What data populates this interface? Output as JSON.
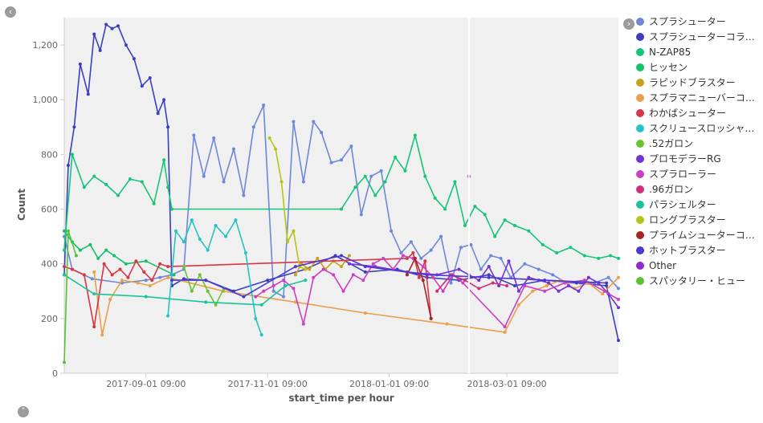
{
  "nav": {
    "collapse_left_icon": "chevron-left-icon",
    "collapse_right_icon": "chevron-right-icon",
    "collapse_up_icon": "chevron-up-icon"
  },
  "colors": {
    "plot_bg": "#f0f0f0",
    "axis": "#cccccc",
    "tick_text": "#666666",
    "marker_line": "#ffffff"
  },
  "chart_data": {
    "type": "line",
    "title": "",
    "xlabel": "start_time per hour",
    "ylabel": "Count",
    "ylim": [
      0,
      1300
    ],
    "yticks": [
      0,
      200,
      400,
      600,
      800,
      1000,
      1200
    ],
    "ytick_labels": [
      "0",
      "200",
      "400",
      "600",
      "800",
      "1,000",
      "1,200"
    ],
    "xlim": [
      "2017-07-22",
      "2018-04-26"
    ],
    "xticks": [
      "2017-09-01",
      "2017-11-01",
      "2018-01-01",
      "2018-03-01"
    ],
    "xtick_labels": [
      "2017-09-01 09:00",
      "2017-11-01 09:00",
      "2018-01-01 09:00",
      "2018-03-01 09:00"
    ],
    "grid": false,
    "legend_position": "right",
    "vertical_marker": "2018-02-10",
    "series": [
      {
        "name": "スプラシューター",
        "color": "#6f87d8",
        "x": [
          "2017-07-22",
          "2017-07-26",
          "2017-08-05",
          "2017-08-20",
          "2017-09-01",
          "2017-09-08",
          "2017-09-14",
          "2017-09-20",
          "2017-09-25",
          "2017-09-30",
          "2017-10-05",
          "2017-10-10",
          "2017-10-15",
          "2017-10-20",
          "2017-10-25",
          "2017-10-30",
          "2017-11-04",
          "2017-11-09",
          "2017-11-14",
          "2017-11-19",
          "2017-11-24",
          "2017-11-28",
          "2017-12-03",
          "2017-12-08",
          "2017-12-13",
          "2017-12-18",
          "2017-12-23",
          "2017-12-28",
          "2018-01-02",
          "2018-01-07",
          "2018-01-12",
          "2018-01-17",
          "2018-01-22",
          "2018-01-27",
          "2018-02-01",
          "2018-02-06",
          "2018-02-11",
          "2018-02-16",
          "2018-02-21",
          "2018-02-26",
          "2018-03-03",
          "2018-03-10",
          "2018-03-17",
          "2018-03-24",
          "2018-03-31",
          "2018-04-07",
          "2018-04-14",
          "2018-04-21",
          "2018-04-26"
        ],
        "values": [
          500,
          380,
          345,
          330,
          340,
          350,
          360,
          380,
          870,
          720,
          860,
          700,
          820,
          650,
          900,
          980,
          300,
          280,
          920,
          700,
          920,
          880,
          770,
          780,
          830,
          580,
          720,
          740,
          520,
          440,
          480,
          420,
          450,
          500,
          330,
          460,
          470,
          380,
          430,
          420,
          350,
          400,
          380,
          360,
          330,
          330,
          330,
          350,
          310
        ]
      },
      {
        "name": "スプラシューターコラ…",
        "color": "#3d3dc2",
        "x": [
          "2017-07-22",
          "2017-07-24",
          "2017-07-27",
          "2017-07-30",
          "2017-08-03",
          "2017-08-06",
          "2017-08-09",
          "2017-08-12",
          "2017-08-15",
          "2017-08-18",
          "2017-08-22",
          "2017-08-26",
          "2017-08-30",
          "2017-09-03",
          "2017-09-07",
          "2017-09-10",
          "2017-09-12",
          "2017-09-14",
          "2017-09-20",
          "2017-10-01",
          "2017-10-15",
          "2017-11-01",
          "2017-11-20",
          "2017-12-05",
          "2017-12-20",
          "2018-01-05",
          "2018-01-20",
          "2018-02-05",
          "2018-02-20",
          "2018-03-05",
          "2018-03-20",
          "2018-04-05",
          "2018-04-20",
          "2018-04-26"
        ],
        "values": [
          360,
          760,
          900,
          1130,
          1020,
          1240,
          1180,
          1275,
          1260,
          1270,
          1200,
          1150,
          1050,
          1080,
          950,
          1000,
          900,
          320,
          345,
          340,
          300,
          340,
          380,
          430,
          370,
          380,
          350,
          340,
          360,
          320,
          340,
          330,
          320,
          120
        ]
      },
      {
        "name": "N-ZAP85",
        "color": "#16c47b",
        "x": [
          "2017-07-22",
          "2017-07-26",
          "2017-08-01",
          "2017-08-06",
          "2017-08-12",
          "2017-08-18",
          "2017-08-24",
          "2017-08-30",
          "2017-09-05",
          "2017-09-10",
          "2017-09-12",
          "2017-09-14",
          "2017-12-08",
          "2017-12-15",
          "2017-12-20",
          "2017-12-25",
          "2017-12-30",
          "2018-01-04",
          "2018-01-09",
          "2018-01-14",
          "2018-01-19",
          "2018-01-24",
          "2018-01-29",
          "2018-02-03",
          "2018-02-08",
          "2018-02-13",
          "2018-02-18",
          "2018-02-23",
          "2018-02-28",
          "2018-03-05",
          "2018-03-12",
          "2018-03-19",
          "2018-03-26",
          "2018-04-02",
          "2018-04-09",
          "2018-04-16",
          "2018-04-22",
          "2018-04-26"
        ],
        "values": [
          450,
          800,
          680,
          720,
          690,
          650,
          710,
          700,
          620,
          780,
          680,
          600,
          600,
          680,
          720,
          650,
          700,
          790,
          740,
          870,
          720,
          640,
          600,
          700,
          540,
          610,
          580,
          500,
          560,
          540,
          520,
          470,
          440,
          460,
          430,
          420,
          430,
          420
        ]
      },
      {
        "name": "ヒッセン",
        "color": "#13c266",
        "x": [
          "2017-07-22",
          "2017-07-26",
          "2017-07-30",
          "2017-08-04",
          "2017-08-08",
          "2017-08-12",
          "2017-08-16",
          "2017-08-22",
          "2017-09-01",
          "2017-09-15"
        ],
        "values": [
          520,
          480,
          450,
          470,
          420,
          450,
          430,
          400,
          410,
          360
        ]
      },
      {
        "name": "ラピッドブラスター",
        "color": "#c9a11c",
        "x": [
          "2017-11-15",
          "2017-11-18",
          "2017-11-22",
          "2017-11-26",
          "2017-11-30",
          "2017-12-04",
          "2017-12-08",
          "2017-12-12"
        ],
        "values": [
          360,
          400,
          380,
          420,
          380,
          410,
          390,
          430
        ]
      },
      {
        "name": "スプラマニューバーコ…",
        "color": "#e8a04c",
        "x": [
          "2017-08-06",
          "2017-08-10",
          "2017-08-14",
          "2017-08-20",
          "2017-08-28",
          "2017-09-03",
          "2017-09-12",
          "2017-10-10",
          "2017-11-15",
          "2017-12-20",
          "2018-01-30",
          "2018-02-28",
          "2018-03-07",
          "2018-03-14",
          "2018-03-21",
          "2018-03-28",
          "2018-04-04",
          "2018-04-11",
          "2018-04-18",
          "2018-04-26"
        ],
        "values": [
          370,
          140,
          270,
          340,
          330,
          320,
          350,
          300,
          260,
          220,
          180,
          150,
          250,
          300,
          320,
          340,
          310,
          330,
          290,
          350
        ]
      },
      {
        "name": "わかばシューター",
        "color": "#d93544",
        "x": [
          "2017-07-22",
          "2017-07-26",
          "2017-08-01",
          "2017-08-06",
          "2017-08-11",
          "2017-08-15",
          "2017-08-19",
          "2017-08-23",
          "2017-08-27",
          "2017-08-31",
          "2017-09-04",
          "2017-09-08",
          "2017-09-12",
          "2018-01-10",
          "2018-01-13",
          "2018-01-16",
          "2018-01-19",
          "2018-01-22"
        ],
        "values": [
          390,
          380,
          360,
          170,
          400,
          360,
          380,
          350,
          410,
          370,
          340,
          400,
          390,
          420,
          440,
          350,
          410,
          200
        ]
      },
      {
        "name": "スクリュースロッシャ…",
        "color": "#25c3c3",
        "x": [
          "2017-09-12",
          "2017-09-16",
          "2017-09-20",
          "2017-09-24",
          "2017-09-28",
          "2017-10-02",
          "2017-10-06",
          "2017-10-11",
          "2017-10-16",
          "2017-10-21",
          "2017-10-26",
          "2017-10-29"
        ],
        "values": [
          210,
          520,
          480,
          560,
          490,
          450,
          540,
          500,
          560,
          440,
          200,
          140
        ]
      },
      {
        "name": ".52ガロン",
        "color": "#6ac42d",
        "x": [
          "2017-09-20",
          "2017-09-24",
          "2017-09-28",
          "2017-10-02",
          "2017-10-06",
          "2017-10-10"
        ],
        "values": [
          390,
          300,
          360,
          300,
          250,
          310
        ]
      },
      {
        "name": "プロモデラーRG",
        "color": "#7433d6",
        "x": [
          "2017-12-12",
          "2017-12-25",
          "2018-01-10",
          "2018-01-25",
          "2018-02-05",
          "2018-02-10",
          "2018-02-15",
          "2018-02-20",
          "2018-02-25",
          "2018-03-02",
          "2018-03-07",
          "2018-03-12",
          "2018-03-17",
          "2018-03-22",
          "2018-03-27",
          "2018-04-01",
          "2018-04-06",
          "2018-04-11",
          "2018-04-16",
          "2018-04-21",
          "2018-04-26"
        ],
        "values": [
          400,
          390,
          370,
          360,
          380,
          360,
          340,
          390,
          320,
          410,
          300,
          350,
          340,
          330,
          300,
          320,
          300,
          350,
          330,
          290,
          240
        ]
      },
      {
        "name": "スプラローラー",
        "color": "#cc3fc2",
        "x": [
          "2017-10-26",
          "2017-10-30",
          "2017-11-04",
          "2017-11-09",
          "2017-11-14",
          "2017-11-19",
          "2017-11-24",
          "2017-11-29",
          "2017-12-04",
          "2017-12-09",
          "2017-12-14",
          "2017-12-19",
          "2017-12-24",
          "2017-12-29",
          "2018-01-03",
          "2018-01-08",
          "2018-01-13",
          "2018-01-18",
          "2018-01-23",
          "2018-01-28",
          "2018-02-02",
          "2018-02-07",
          "2018-02-28",
          "2018-03-10",
          "2018-03-20",
          "2018-03-30",
          "2018-04-09",
          "2018-04-19",
          "2018-04-26"
        ],
        "values": [
          280,
          300,
          320,
          340,
          310,
          180,
          350,
          380,
          360,
          300,
          360,
          340,
          400,
          420,
          380,
          430,
          420,
          390,
          350,
          300,
          360,
          330,
          170,
          320,
          300,
          330,
          340,
          300,
          270
        ]
      },
      {
        "name": ".96ガロン",
        "color": "#d42d7c",
        "x": [
          "2018-01-25",
          "2018-02-01",
          "2018-02-08",
          "2018-02-15",
          "2018-02-22",
          "2018-03-01"
        ],
        "values": [
          300,
          360,
          340,
          310,
          330,
          320
        ]
      },
      {
        "name": "パラシェルター",
        "color": "#1bc39b",
        "x": [
          "2017-07-22",
          "2017-08-06",
          "2017-09-01",
          "2017-10-01",
          "2017-10-29",
          "2017-11-10",
          "2017-11-20"
        ],
        "values": [
          360,
          290,
          280,
          260,
          250,
          320,
          340
        ]
      },
      {
        "name": "ロングブラスター",
        "color": "#b7c416",
        "x": [
          "2017-11-02",
          "2017-11-05",
          "2017-11-08",
          "2017-11-11",
          "2017-11-14",
          "2017-11-17",
          "2017-11-20"
        ],
        "values": [
          860,
          820,
          700,
          480,
          520,
          390,
          380
        ]
      },
      {
        "name": "プライムシューターコ…",
        "color": "#a82424",
        "x": [
          "2018-01-10",
          "2018-01-14",
          "2018-01-18",
          "2018-01-22"
        ],
        "values": [
          360,
          420,
          340,
          200
        ]
      },
      {
        "name": "ホットブラスター",
        "color": "#4b3ad2",
        "x": [
          "2017-09-14",
          "2017-10-01",
          "2017-10-20",
          "2017-11-15",
          "2017-12-08",
          "2017-12-20",
          "2018-01-20",
          "2018-02-20",
          "2018-03-20",
          "2018-04-20"
        ],
        "values": [
          340,
          340,
          280,
          390,
          430,
          390,
          360,
          350,
          340,
          330
        ]
      },
      {
        "name": "Other",
        "color": "#8f2bd0",
        "x": [
          "2018-02-10"
        ],
        "values": [
          720
        ]
      },
      {
        "name": "スパッタリー・ヒュー",
        "color": "#58c237",
        "x": [
          "2017-07-22",
          "2017-07-24",
          "2017-07-28"
        ],
        "values": [
          40,
          520,
          430
        ]
      }
    ]
  }
}
